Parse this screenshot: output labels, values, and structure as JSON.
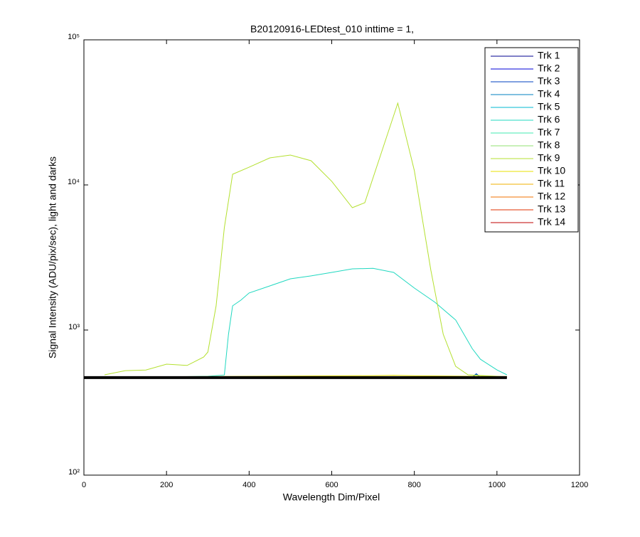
{
  "chart_data": {
    "type": "line",
    "title": "B20120916-LEDtest_010 inttime = 1,",
    "xlabel": "Wavelength Dim/Pixel",
    "ylabel": "Signal Intensity (ADU/pix/sec), light and darks",
    "xlim": [
      0,
      1200
    ],
    "xticks": [
      0,
      200,
      400,
      600,
      800,
      1000,
      1200
    ],
    "ylim": [
      100,
      100000
    ],
    "yscale": "log",
    "yticks": [
      {
        "value": 100,
        "label": "10²"
      },
      {
        "value": 1000,
        "label": "10³"
      },
      {
        "value": 10000,
        "label": "10⁴"
      },
      {
        "value": 100000,
        "label": "10⁵"
      }
    ],
    "legend": "upper right",
    "series": [
      {
        "name": "Trk 1",
        "color": "#000090",
        "x": [
          0,
          500,
          1024
        ],
        "values": [
          470,
          472,
          473
        ]
      },
      {
        "name": "Trk 2",
        "color": "#0000d8",
        "x": [
          0,
          500,
          1024
        ],
        "values": [
          470,
          472,
          473
        ]
      },
      {
        "name": "Trk 3",
        "color": "#0040c0",
        "x": [
          0,
          500,
          940,
          950,
          960,
          1024
        ],
        "values": [
          471,
          473,
          474,
          500,
          474,
          474
        ]
      },
      {
        "name": "Trk 4",
        "color": "#0080c0",
        "x": [
          0,
          500,
          940,
          950,
          960,
          1024
        ],
        "values": [
          471,
          473,
          475,
          495,
          475,
          475
        ]
      },
      {
        "name": "Trk 5",
        "color": "#00b8d0",
        "x": [
          0,
          500,
          1024
        ],
        "values": [
          472,
          474,
          476
        ]
      },
      {
        "name": "Trk 6",
        "color": "#20d8c0",
        "x": [
          0,
          100,
          200,
          300,
          340,
          350,
          360,
          380,
          400,
          450,
          500,
          550,
          600,
          650,
          700,
          750,
          800,
          850,
          900,
          940,
          960,
          1000,
          1024
        ],
        "values": [
          470,
          472,
          475,
          480,
          490,
          935,
          1468,
          1607,
          1800,
          2014,
          2254,
          2360,
          2494,
          2640,
          2660,
          2494,
          1946,
          1553,
          1172,
          746,
          629,
          531,
          491
        ]
      },
      {
        "name": "Trk 7",
        "color": "#40e8b0",
        "x": [
          0,
          500,
          1024
        ],
        "values": [
          473,
          475,
          477
        ]
      },
      {
        "name": "Trk 8",
        "color": "#90e070",
        "x": [
          0,
          500,
          1024
        ],
        "values": [
          474,
          476,
          478
        ]
      },
      {
        "name": "Trk 9",
        "color": "#b4e030",
        "x": [
          50,
          100,
          150,
          200,
          250,
          290,
          300,
          320,
          340,
          360,
          400,
          450,
          500,
          550,
          600,
          650,
          680,
          720,
          760,
          800,
          840,
          870,
          900,
          930,
          1000,
          1024
        ],
        "values": [
          491,
          525,
          530,
          582,
          570,
          651,
          705,
          1468,
          5080,
          11850,
          13250,
          15350,
          16070,
          14680,
          10590,
          6970,
          7540,
          16620,
          36600,
          12530,
          2580,
          935,
          562,
          491,
          480,
          475
        ]
      },
      {
        "name": "Trk 10",
        "color": "#e8e000",
        "x": [
          0,
          300,
          700,
          750,
          800,
          1024
        ],
        "values": [
          475,
          478,
          485,
          488,
          484,
          478
        ]
      },
      {
        "name": "Trk 11",
        "color": "#f0b000",
        "x": [
          0,
          500,
          1024
        ],
        "values": [
          474,
          477,
          477
        ]
      },
      {
        "name": "Trk 12",
        "color": "#f07000",
        "x": [
          0,
          500,
          1024
        ],
        "values": [
          473,
          476,
          476
        ]
      },
      {
        "name": "Trk 13",
        "color": "#e03000",
        "x": [
          0,
          500,
          1024
        ],
        "values": [
          472,
          475,
          475
        ]
      },
      {
        "name": "Trk 14",
        "color": "#c00000",
        "x": [
          0,
          500,
          1024
        ],
        "values": [
          471,
          474,
          474
        ]
      },
      {
        "color": "#000000",
        "width": 4,
        "x": [
          0,
          1024
        ],
        "values": [
          470,
          470
        ]
      }
    ]
  }
}
